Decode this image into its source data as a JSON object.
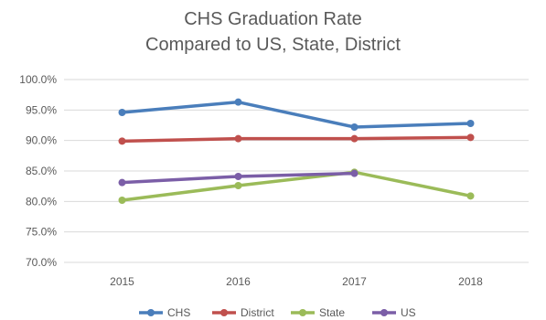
{
  "chart_data": {
    "type": "line",
    "title_lines": [
      "CHS Graduation Rate",
      "Compared to US, State, District"
    ],
    "categories": [
      "2015",
      "2016",
      "2017",
      "2018"
    ],
    "ylim": [
      70.0,
      100.0
    ],
    "y_ticks": [
      "100.0%",
      "95.0%",
      "90.0%",
      "85.0%",
      "80.0%",
      "75.0%",
      "70.0%"
    ],
    "y_tick_values": [
      100,
      95,
      90,
      85,
      80,
      75,
      70
    ],
    "grid": "horizontal",
    "legend_position": "bottom",
    "series": [
      {
        "name": "CHS",
        "color": "#4a7ebb",
        "values": [
          94.6,
          96.3,
          92.2,
          92.8
        ]
      },
      {
        "name": "District",
        "color": "#c0504d",
        "values": [
          89.9,
          90.3,
          90.3,
          90.5
        ]
      },
      {
        "name": "State",
        "color": "#9bbb59",
        "values": [
          80.2,
          82.6,
          84.8,
          80.9
        ]
      },
      {
        "name": "US",
        "color": "#7b5ea7",
        "values": [
          83.1,
          84.1,
          84.6,
          null
        ]
      }
    ]
  }
}
